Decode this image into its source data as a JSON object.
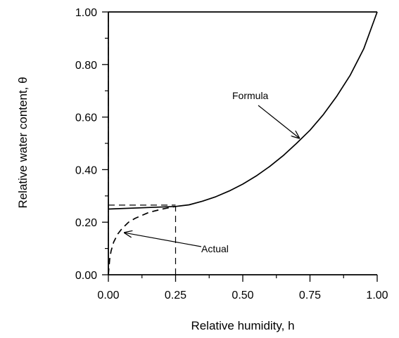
{
  "chart_data": {
    "type": "line",
    "xlabel": "Relative humidity, h",
    "ylabel": "Relative water content,  θ",
    "xlim": [
      0,
      1
    ],
    "ylim": [
      0,
      1
    ],
    "x_ticks": [
      "0.00",
      "0.25",
      "0.50",
      "0.75",
      "1.00"
    ],
    "y_ticks": [
      "0.00",
      "0.20",
      "0.40",
      "0.60",
      "0.80",
      "1.00"
    ],
    "grid": false,
    "series": [
      {
        "name": "Formula",
        "style": "solid",
        "x": [
          0.0,
          0.25,
          0.3,
          0.35,
          0.4,
          0.45,
          0.5,
          0.55,
          0.6,
          0.65,
          0.7,
          0.75,
          0.8,
          0.85,
          0.9,
          0.95,
          1.0
        ],
        "y": [
          0.25,
          0.26,
          0.266,
          0.28,
          0.297,
          0.319,
          0.345,
          0.376,
          0.412,
          0.453,
          0.5,
          0.55,
          0.61,
          0.68,
          0.76,
          0.86,
          1.0
        ]
      },
      {
        "name": "Actual",
        "style": "dashed",
        "x": [
          0.0,
          0.005,
          0.01,
          0.02,
          0.035,
          0.05,
          0.075,
          0.1,
          0.15,
          0.2,
          0.25
        ],
        "y": [
          0.0,
          0.06,
          0.09,
          0.125,
          0.155,
          0.175,
          0.2,
          0.215,
          0.237,
          0.25,
          0.26
        ]
      }
    ],
    "reference_lines": [
      {
        "orientation": "vertical",
        "x": 0.25,
        "y_from": 0,
        "y_to": 0.26,
        "style": "dashed"
      },
      {
        "orientation": "vertical",
        "x": 0.0,
        "y_from": 0,
        "y_to": 1.0,
        "style": "dash-dot"
      },
      {
        "orientation": "horizontal",
        "y": 0.265,
        "x_from": 0,
        "x_to": 0.25,
        "style": "dashed"
      }
    ],
    "annotations": [
      {
        "text": "Formula",
        "arrow_to": [
          0.71,
          0.52
        ]
      },
      {
        "text": "Actual",
        "arrow_to": [
          0.06,
          0.16
        ]
      }
    ]
  }
}
